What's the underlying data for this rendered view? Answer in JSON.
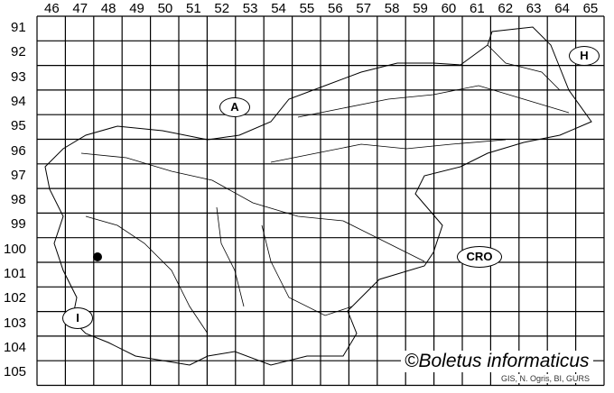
{
  "grid": {
    "columns": [
      "46",
      "47",
      "48",
      "49",
      "50",
      "51",
      "52",
      "53",
      "54",
      "55",
      "56",
      "57",
      "58",
      "59",
      "60",
      "61",
      "62",
      "63",
      "64",
      "65"
    ],
    "rows": [
      "91",
      "92",
      "93",
      "94",
      "95",
      "96",
      "97",
      "98",
      "99",
      "100",
      "101",
      "102",
      "103",
      "104",
      "105"
    ]
  },
  "countries": [
    {
      "id": "A",
      "label": "A"
    },
    {
      "id": "H",
      "label": "H"
    },
    {
      "id": "CRO",
      "label": "CRO"
    },
    {
      "id": "I",
      "label": "I"
    }
  ],
  "records": [
    {
      "column": "47",
      "row": "100"
    }
  ],
  "copyright": "©Boletus informaticus",
  "credit": "GIS, N. Ogris, BI, GURS"
}
